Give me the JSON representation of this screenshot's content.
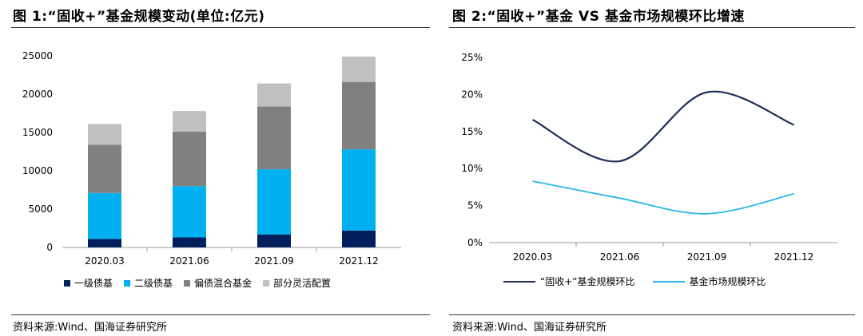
{
  "left_panel": {
    "title": "图 1:“固收+”基金规模变动(单位:亿元)",
    "source": "资料来源:Wind、国海证券研究所"
  },
  "right_panel": {
    "title": "图 2:“固收+”基金 VS 基金市场规模环比增速",
    "source": "资料来源:Wind、国海证券研究所"
  },
  "chart_data": [
    {
      "type": "bar",
      "stacked": true,
      "title": "",
      "categories": [
        "2020.03",
        "2021.06",
        "2021.09",
        "2021.12"
      ],
      "series": [
        {
          "name": "一级债基",
          "color": "#001f5c",
          "values": [
            1100,
            1300,
            1700,
            2200
          ]
        },
        {
          "name": "二级债基",
          "color": "#00b0f0",
          "values": [
            6000,
            6700,
            8500,
            10600
          ]
        },
        {
          "name": "偏债混合基金",
          "color": "#808080",
          "values": [
            6300,
            7100,
            8200,
            8800
          ]
        },
        {
          "name": "部分灵活配置",
          "color": "#c0c0c0",
          "values": [
            2700,
            2700,
            3000,
            3300
          ]
        }
      ],
      "ylim": [
        0,
        25000
      ],
      "yticks": [
        "0",
        "5000",
        "10000",
        "15000",
        "20000",
        "25000"
      ],
      "legend": "bottom"
    },
    {
      "type": "line",
      "title": "",
      "categories": [
        "2020.03",
        "2021.06",
        "2021.09",
        "2021.12"
      ],
      "series": [
        {
          "name": "“固收+”基金规模环比",
          "color": "#1f2d5a",
          "values": [
            16.6,
            11.0,
            20.3,
            15.9
          ]
        },
        {
          "name": "基金市场规模环比",
          "color": "#2ab8e6",
          "values": [
            8.3,
            6.0,
            3.9,
            6.6
          ]
        }
      ],
      "ylim": [
        0,
        25
      ],
      "yticks": [
        "0%",
        "5%",
        "10%",
        "15%",
        "20%",
        "25%"
      ],
      "legend": "bottom"
    }
  ]
}
